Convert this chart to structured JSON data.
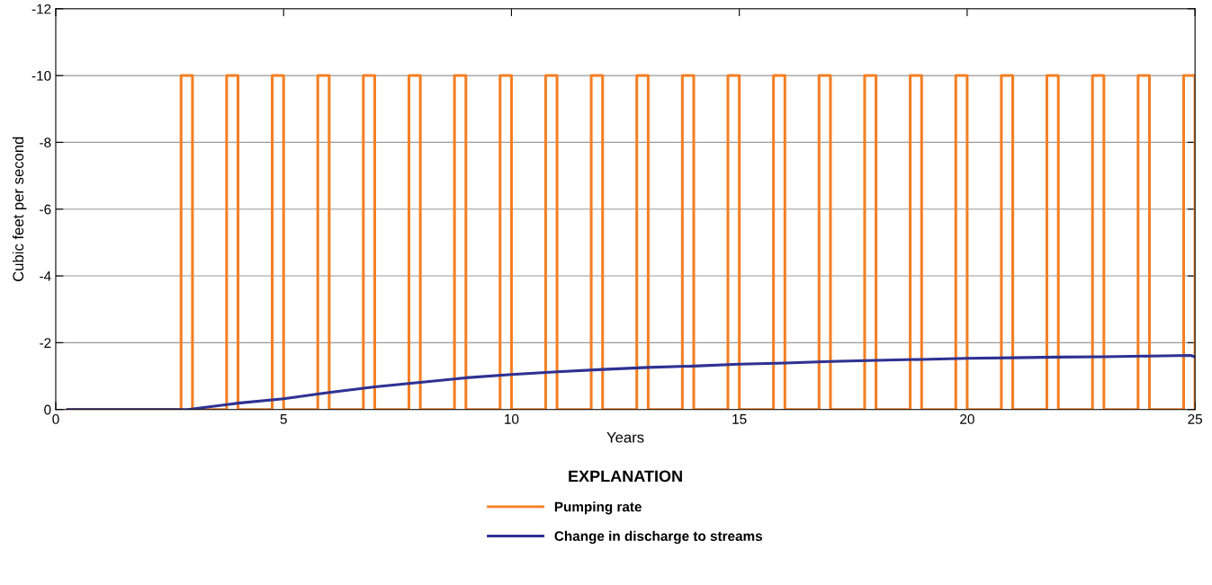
{
  "chart_data": {
    "type": "step",
    "xlabel": "Years",
    "ylabel": "Cubic feet per second",
    "legend_title": "EXPLANATION",
    "xlim": [
      0,
      25
    ],
    "xticks": [
      0,
      5,
      10,
      15,
      20,
      25
    ],
    "ylim": [
      0,
      -12
    ],
    "yticks": [
      0,
      -2,
      -4,
      -6,
      -8,
      -10,
      -12
    ],
    "grid": "y",
    "legend": "bottom",
    "series": [
      {
        "name": "Pumping rate",
        "color": "#f47f24",
        "x": [
          0.25,
          2.75,
          3.0,
          3.75,
          4.0,
          4.75,
          5.0,
          5.75,
          6.0,
          6.75,
          7.0,
          7.75,
          8.0,
          8.75,
          9.0,
          9.75,
          10.0,
          10.75,
          11.0,
          11.75,
          12.0,
          12.75,
          13.0,
          13.75,
          14.0,
          14.75,
          15.0,
          15.75,
          16.0,
          16.75,
          17.0,
          17.75,
          18.0,
          18.75,
          19.0,
          19.75,
          20.0,
          20.75,
          21.0,
          21.75,
          22.0,
          22.75,
          23.0,
          23.75,
          24.0,
          24.75,
          25.0
        ],
        "values": [
          0,
          -10,
          0,
          -10,
          0,
          -10,
          0,
          -10,
          0,
          -10,
          0,
          -10,
          0,
          -10,
          0,
          -10,
          0,
          -10,
          0,
          -10,
          0,
          -10,
          0,
          -10,
          0,
          -10,
          0,
          -10,
          0,
          -10,
          0,
          -10,
          0,
          -10,
          0,
          -10,
          0,
          -10,
          0,
          -10,
          0,
          -10,
          0,
          -10,
          0,
          -10,
          0
        ]
      },
      {
        "name": "Change in discharge to streams",
        "type": "line",
        "color": "#2e3192",
        "x": [
          0.25,
          2.9,
          4,
          5,
          6,
          7,
          8,
          9,
          10,
          11,
          12,
          13,
          14,
          15,
          16,
          17,
          18,
          19,
          20,
          21,
          22,
          23,
          24,
          24.9,
          25
        ],
        "values": [
          0,
          0,
          -0.19,
          -0.32,
          -0.51,
          -0.68,
          -0.81,
          -0.95,
          -1.05,
          -1.13,
          -1.2,
          -1.26,
          -1.3,
          -1.36,
          -1.39,
          -1.44,
          -1.47,
          -1.5,
          -1.53,
          -1.55,
          -1.57,
          -1.58,
          -1.6,
          -1.62,
          -1.58
        ]
      }
    ]
  }
}
